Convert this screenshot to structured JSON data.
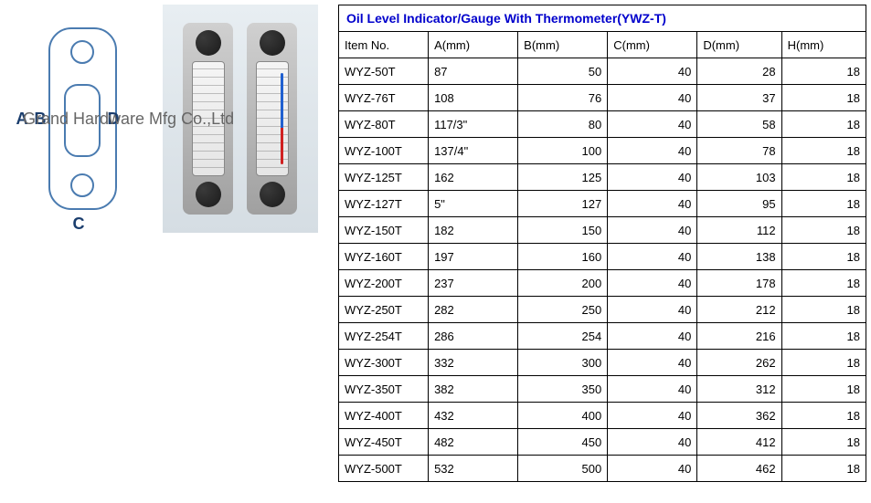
{
  "title": "Oil Level Indicator/Gauge With Thermometer(YWZ-T)",
  "watermark": "Grand Hardware Mfg Co.,Ltd",
  "dim_labels": {
    "A": "A",
    "B": "B",
    "C": "C",
    "D": "D"
  },
  "columns": [
    "Item No.",
    "A(mm)",
    "B(mm)",
    "C(mm)",
    "D(mm)",
    "H(mm)"
  ],
  "rows": [
    [
      "WYZ-50T",
      "87",
      "50",
      "40",
      "28",
      "18"
    ],
    [
      "WYZ-76T",
      "108",
      "76",
      "40",
      "37",
      "18"
    ],
    [
      "WYZ-80T",
      "117/3\"",
      "80",
      "40",
      "58",
      "18"
    ],
    [
      "WYZ-100T",
      "137/4\"",
      "100",
      "40",
      "78",
      "18"
    ],
    [
      "WYZ-125T",
      "162",
      "125",
      "40",
      "103",
      "18"
    ],
    [
      "WYZ-127T",
      "5\"",
      "127",
      "40",
      "95",
      "18"
    ],
    [
      "WYZ-150T",
      "182",
      "150",
      "40",
      "112",
      "18"
    ],
    [
      "WYZ-160T",
      "197",
      "160",
      "40",
      "138",
      "18"
    ],
    [
      "WYZ-200T",
      "237",
      "200",
      "40",
      "178",
      "18"
    ],
    [
      "WYZ-250T",
      "282",
      "250",
      "40",
      "212",
      "18"
    ],
    [
      "WYZ-254T",
      "286",
      "254",
      "40",
      "216",
      "18"
    ],
    [
      "WYZ-300T",
      "332",
      "300",
      "40",
      "262",
      "18"
    ],
    [
      "WYZ-350T",
      "382",
      "350",
      "40",
      "312",
      "18"
    ],
    [
      "WYZ-400T",
      "432",
      "400",
      "40",
      "362",
      "18"
    ],
    [
      "WYZ-450T",
      "482",
      "450",
      "40",
      "412",
      "18"
    ],
    [
      "WYZ-500T",
      "532",
      "500",
      "40",
      "462",
      "18"
    ]
  ],
  "table_style": {
    "border_color": "#000000",
    "title_color": "#0000cc",
    "font_family": "Arial",
    "font_size": 13
  },
  "diagram_style": {
    "stroke_color": "#4a7bb0",
    "label_color": "#1a3d6d"
  }
}
